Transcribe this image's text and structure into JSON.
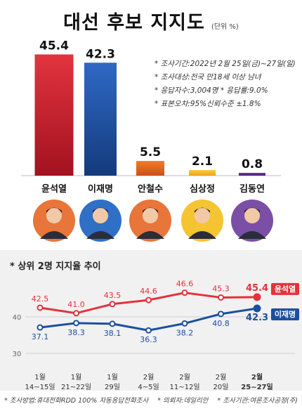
{
  "header": {
    "title": "대선 후보 지지도",
    "unit": "(단위 %)"
  },
  "survey_info": [
    "* 조사기간:2022년 2월 25일(금)~27일(일)",
    "* 조사대상:전국 만18세 이상 남녀",
    "* 응답자수:3,004명  * 응답률:9.0%",
    "* 표본오차:95%신뢰수준 ±1.8%"
  ],
  "portraits": [
    {
      "candidate": "윤석열",
      "color": "#e8753a"
    },
    {
      "candidate": "이재명",
      "color": "#2f6fc6"
    },
    {
      "candidate": "안철수",
      "color": "#e8753a"
    },
    {
      "candidate": "심상정",
      "color": "#f5c431"
    },
    {
      "candidate": "김동연",
      "color": "#7b4fa6"
    }
  ],
  "trend_title": "* 상위 2명 지지율 추이",
  "footer": [
    "* 조사방법:휴대전화RDD 100% 자동응답전화조사",
    "* 의뢰자:데일리안",
    "* 조사기관:여론조사공정(주)"
  ],
  "chart_data": [
    {
      "type": "bar",
      "title": "대선 후보 지지도",
      "unit": "(단위 %)",
      "categories": [
        "윤석열",
        "이재명",
        "안철수",
        "심상정",
        "김동연"
      ],
      "values": [
        45.4,
        42.3,
        5.5,
        2.1,
        0.8
      ],
      "value_labels": [
        "45.4",
        "42.3",
        "5.5",
        "2.1",
        "0.8"
      ],
      "colors": [
        "#c8202f",
        "#1b4fa0",
        "#e06a1f",
        "#f3b81c",
        "#5a2d8c"
      ],
      "ylim": [
        0,
        50
      ]
    },
    {
      "type": "line",
      "title": "* 상위 2명 지지율 추이",
      "categories": [
        [
          "1월",
          "14~15일"
        ],
        [
          "1월",
          "21~22일"
        ],
        [
          "1월",
          "29일"
        ],
        [
          "2월",
          "4~5일"
        ],
        [
          "2월",
          "11~12일"
        ],
        [
          "2월",
          "20일"
        ],
        [
          "2월",
          "25~27일"
        ]
      ],
      "series": [
        {
          "name": "윤석열",
          "color": "#e3323b",
          "values": [
            42.5,
            41.0,
            43.5,
            44.6,
            46.6,
            45.3,
            45.4
          ],
          "labels": [
            "42.5",
            "41.0",
            "43.5",
            "44.6",
            "46.6",
            "45.3",
            "45.4"
          ]
        },
        {
          "name": "이재명",
          "color": "#1b4fa0",
          "values": [
            37.1,
            38.3,
            38.1,
            36.3,
            38.2,
            40.8,
            42.3
          ],
          "labels": [
            "37.1",
            "38.3",
            "38.1",
            "36.3",
            "38.2",
            "40.8",
            "42.3"
          ]
        }
      ],
      "yticks": [
        "40",
        "30"
      ],
      "ylim": [
        30,
        50
      ],
      "grid": true
    }
  ]
}
